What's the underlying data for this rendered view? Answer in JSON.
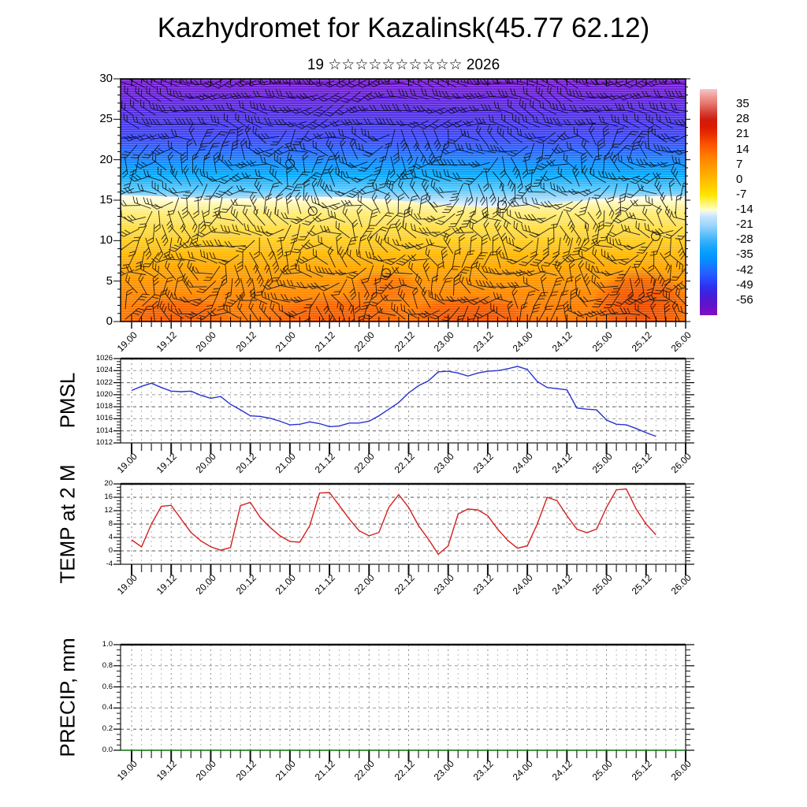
{
  "title": "Kazhydromet for Kazalinsk(45.77 62.12)",
  "subtitle": "19 ☆☆☆☆☆☆☆☆☆☆ 2026",
  "x_axis": {
    "tick_labels": [
      "19.00",
      "19.12",
      "20.00",
      "20.12",
      "21.00",
      "21.12",
      "22.00",
      "22.12",
      "23.00",
      "23.12",
      "24.00",
      "24.12",
      "25.00",
      "25.12",
      "26.00"
    ],
    "minor_step_hours": 3
  },
  "panels": {
    "pmsl": {
      "title": "PMSL"
    },
    "temp": {
      "title": "TEMP at 2 M"
    },
    "precip": {
      "title": "PRECIP, mm"
    }
  },
  "chart_data": [
    {
      "id": "cross_section",
      "type": "heatmap",
      "description": "Time-height temperature cross-section (filled colors, °C per colorbar) overlaid with black wind barbs; calm-wind circles at several points",
      "ylim": [
        0,
        30
      ],
      "ytick_labels": [
        "0",
        "5",
        "10",
        "15",
        "20",
        "25",
        "30"
      ],
      "x_range": [
        "19.00",
        "26.00"
      ],
      "field_summary": "warm orange/red near surface (levels 0-10), yellow 10-15, sharp transition near level 15, light blue to cyan 15-20, blue 21-26, violet-purple 27-30",
      "calm_circles_frac": [
        [
          0.34,
          0.545
        ],
        [
          0.47,
          0.8
        ],
        [
          0.675,
          0.52
        ],
        [
          0.947,
          0.649
        ],
        [
          0.3,
          0.35
        ]
      ],
      "colorbar": {
        "tick_labels": [
          "35",
          "28",
          "21",
          "14",
          "7",
          "0",
          "-7",
          "-14",
          "-21",
          "-28",
          "-35",
          "-42",
          "-49",
          "-56"
        ],
        "value_top": 42,
        "value_bottom": -63,
        "stops": [
          {
            "v": 42,
            "c": "#f7c6cc"
          },
          {
            "v": 38.5,
            "c": "#ee9a94"
          },
          {
            "v": 35,
            "c": "#e4736a"
          },
          {
            "v": 31.5,
            "c": "#d8453a"
          },
          {
            "v": 28,
            "c": "#cf1d10"
          },
          {
            "v": 24.5,
            "c": "#dd1a00"
          },
          {
            "v": 21,
            "c": "#ea2e00"
          },
          {
            "v": 17.5,
            "c": "#f64b00"
          },
          {
            "v": 14,
            "c": "#ff6400"
          },
          {
            "v": 10.5,
            "c": "#ff7f00"
          },
          {
            "v": 7,
            "c": "#ff9400"
          },
          {
            "v": 3.5,
            "c": "#ffa800"
          },
          {
            "v": 0,
            "c": "#ffbb00"
          },
          {
            "v": -3.5,
            "c": "#ffcf00"
          },
          {
            "v": -7,
            "c": "#ffe300"
          },
          {
            "v": -10.5,
            "c": "#fff45c"
          },
          {
            "v": -14,
            "c": "#ffffc8"
          },
          {
            "v": -15.5,
            "c": "#e4f1fc"
          },
          {
            "v": -17.5,
            "c": "#c2e4fb"
          },
          {
            "v": -21,
            "c": "#9fd7fb"
          },
          {
            "v": -24.5,
            "c": "#6ec5fb"
          },
          {
            "v": -28,
            "c": "#3fb3fb"
          },
          {
            "v": -31.5,
            "c": "#18a5fb"
          },
          {
            "v": -35,
            "c": "#029bff"
          },
          {
            "v": -38.5,
            "c": "#0b86ff"
          },
          {
            "v": -42,
            "c": "#1f6bff"
          },
          {
            "v": -45.5,
            "c": "#2950ff"
          },
          {
            "v": -49,
            "c": "#2c36f2"
          },
          {
            "v": -52.5,
            "c": "#3c22dd"
          },
          {
            "v": -56,
            "c": "#5317cf"
          },
          {
            "v": -59.5,
            "c": "#6a11c8"
          },
          {
            "v": -63,
            "c": "#7e12c4"
          }
        ]
      }
    },
    {
      "id": "pmsl",
      "type": "line",
      "name": "PMSL",
      "color": "#2832d2",
      "ylim": [
        1012,
        1026
      ],
      "ytick_labels": [
        "1012",
        "1014",
        "1016",
        "1018",
        "1020",
        "1022",
        "1024",
        "1026"
      ],
      "x_start": "19.00",
      "x_end": "25.15",
      "x_step_hours": 3,
      "values": [
        1020.7,
        1021.4,
        1021.9,
        1021.2,
        1020.6,
        1020.5,
        1020.6,
        1019.9,
        1019.4,
        1019.7,
        1018.4,
        1017.5,
        1016.5,
        1016.4,
        1016.1,
        1015.6,
        1015.0,
        1015.1,
        1015.5,
        1015.2,
        1014.7,
        1014.8,
        1015.3,
        1015.3,
        1015.6,
        1016.5,
        1017.6,
        1018.7,
        1020.3,
        1021.5,
        1022.3,
        1023.8,
        1023.9,
        1023.6,
        1023.1,
        1023.6,
        1023.9,
        1024.0,
        1024.3,
        1024.7,
        1024.2,
        1022.2,
        1021.2,
        1021.0,
        1020.8,
        1017.8,
        1017.6,
        1017.5,
        1015.8,
        1015.1,
        1015.0,
        1014.4,
        1013.7,
        1013.1
      ]
    },
    {
      "id": "temp",
      "type": "line",
      "name": "TEMP at 2 M",
      "color": "#d42020",
      "ylim": [
        -4,
        20
      ],
      "ytick_labels": [
        "-4",
        "0",
        "4",
        "8",
        "12",
        "16",
        "20"
      ],
      "x_start": "19.00",
      "x_end": "25.15",
      "x_step_hours": 3,
      "values": [
        3.3,
        1.2,
        8.0,
        13.3,
        13.6,
        9.5,
        5.5,
        3.0,
        1.2,
        0.2,
        1.0,
        13.5,
        14.5,
        10.0,
        7.0,
        4.5,
        2.8,
        2.6,
        7.5,
        17.3,
        17.4,
        13.5,
        9.5,
        6.0,
        4.5,
        5.5,
        13.0,
        16.8,
        13.0,
        7.5,
        3.5,
        -1.0,
        1.5,
        11.0,
        12.5,
        12.2,
        10.5,
        6.5,
        3.2,
        0.8,
        1.5,
        8.0,
        16.0,
        15.0,
        10.5,
        6.5,
        5.4,
        6.5,
        13.0,
        18.2,
        18.5,
        12.5,
        8.0,
        4.8
      ]
    },
    {
      "id": "precip",
      "type": "line",
      "name": "PRECIP, mm",
      "color": "#0b7d0b",
      "ylim": [
        0.0,
        1.0
      ],
      "ytick_labels": [
        "0.0",
        "0.2",
        "0.4",
        "0.6",
        "0.8",
        "1.0"
      ],
      "x_start": "19.00",
      "x_end": "26.00",
      "values_constant": 0.0
    }
  ]
}
